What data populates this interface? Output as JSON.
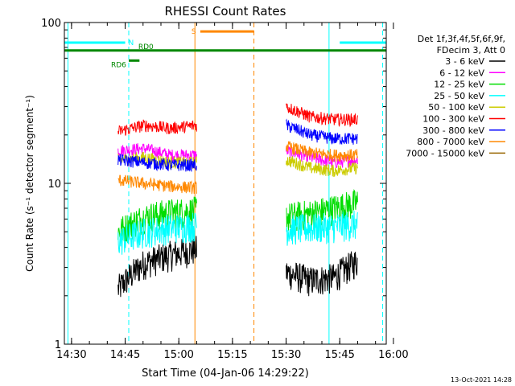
{
  "chart_data": {
    "type": "line",
    "title": "RHESSI Count Rates",
    "xlabel": "Start Time (04-Jan-06 14:29:22)",
    "ylabel": "Count Rate (s⁻¹ detector segment⁻¹)",
    "yscale": "log",
    "ylim": [
      1,
      100
    ],
    "xlim_minutes": [
      -2,
      88
    ],
    "x_unit": "minutes after 14:30",
    "x_ticks": [
      {
        "t": 0,
        "label": "14:30"
      },
      {
        "t": 15,
        "label": "14:45"
      },
      {
        "t": 30,
        "label": "15:00"
      },
      {
        "t": 45,
        "label": "15:15"
      },
      {
        "t": 60,
        "label": "15:30"
      },
      {
        "t": 75,
        "label": "15:45"
      },
      {
        "t": 90,
        "label": "16:00"
      }
    ],
    "y_ticks": [
      {
        "v": 1,
        "label": "1"
      },
      {
        "v": 10,
        "label": "10"
      },
      {
        "v": 100,
        "label": "100"
      }
    ],
    "legend_header": [
      "Det 1f,3f,4f,5f,6f,9f,",
      "FDecim 3, Att 0"
    ],
    "legend_position": "right",
    "segments": [
      [
        13,
        35
      ],
      [
        60,
        80
      ]
    ],
    "series": [
      {
        "name": "3 - 6 keV",
        "color": "#000000",
        "values": [
          [
            2.2,
            3.2,
            3.6,
            3.9
          ],
          [
            2.8,
            2.5,
            2.6,
            3.3
          ]
        ]
      },
      {
        "name": "6 - 12 keV",
        "color": "#ff00ff",
        "values": [
          [
            16,
            16.5,
            15,
            15
          ],
          [
            16,
            14.5,
            13.5,
            14
          ]
        ]
      },
      {
        "name": "12 - 25 keV",
        "color": "#00dd00",
        "values": [
          [
            5.0,
            6.2,
            6.6,
            6.8
          ],
          [
            6.2,
            6.5,
            7.0,
            7.6
          ]
        ]
      },
      {
        "name": "25 - 50 keV",
        "color": "#00ffff",
        "values": [
          [
            4.4,
            5.0,
            5.3,
            5.5
          ],
          [
            5.2,
            5.3,
            5.4,
            5.6
          ]
        ]
      },
      {
        "name": "50 - 100 keV",
        "color": "#cccc00",
        "values": [
          [
            14,
            14.5,
            13.5,
            13.5
          ],
          [
            14,
            12.5,
            12,
            12.5
          ]
        ]
      },
      {
        "name": "100 - 300 keV",
        "color": "#ff0000",
        "values": [
          [
            21,
            23,
            22,
            23
          ],
          [
            30,
            26,
            25,
            25
          ]
        ]
      },
      {
        "name": "300 - 800 keV",
        "color": "#0000ff",
        "values": [
          [
            14,
            13.5,
            13,
            13
          ],
          [
            23,
            20,
            19,
            19
          ]
        ]
      },
      {
        "name": "800 - 7000 keV",
        "color": "#ff8800",
        "values": [
          [
            10.5,
            10,
            9.6,
            9.4
          ],
          [
            17,
            15.5,
            15,
            15
          ]
        ]
      },
      {
        "name": "7000 - 15000 keV",
        "color": "#996600",
        "values": []
      }
    ],
    "annotations": [
      {
        "label": "N",
        "color": "#00ffff",
        "t_start": -2,
        "t_end": 15,
        "t_resume": 75,
        "v": 75,
        "resume_end": 88
      },
      {
        "label": "S",
        "color": "#ff8800",
        "t_start": 36,
        "t_end": 51,
        "v": 88
      },
      {
        "label": "RD0",
        "color": "#008800",
        "t_start": 18,
        "t_end": 18,
        "v": 66
      },
      {
        "label": "RD6",
        "color": "#008800",
        "t_start": 16,
        "t_end": 19,
        "v": 58
      },
      {
        "label": "",
        "color": "#008800",
        "t_start": -2,
        "t_end": 88,
        "v": 67
      }
    ],
    "vlines": [
      {
        "t": -1,
        "color": "#00ffff",
        "dash": false
      },
      {
        "t": 16,
        "color": "#00ffff",
        "dash": true
      },
      {
        "t": 34.5,
        "color": "#ff8800",
        "dash": false
      },
      {
        "t": 51,
        "color": "#ff8800",
        "dash": true
      },
      {
        "t": 72,
        "color": "#00ffff",
        "dash": false
      },
      {
        "t": 87,
        "color": "#00ffff",
        "dash": true
      }
    ],
    "grid": false
  },
  "footer_timestamp": "13-Oct-2021 14:28"
}
